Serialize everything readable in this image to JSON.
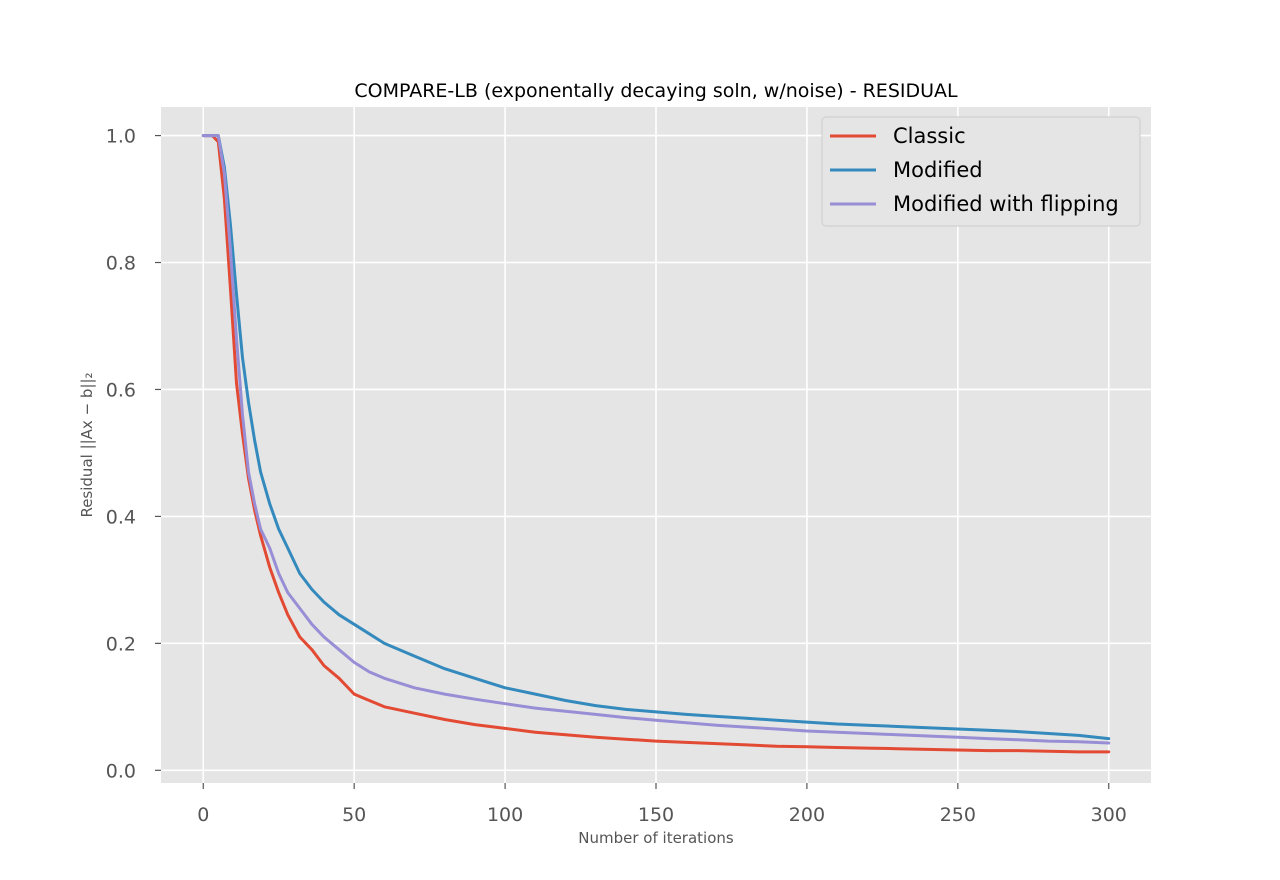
{
  "chart_data": {
    "type": "line",
    "title": "COMPARE-LB (exponentally decaying soln, w/noise) - RESIDUAL",
    "xlabel": "Number of iterations",
    "ylabel": "Residual ||Ax − b||₂",
    "xlim": [
      -14,
      314
    ],
    "ylim": [
      -0.02,
      1.045
    ],
    "xticks": [
      0,
      50,
      100,
      150,
      200,
      250,
      300
    ],
    "yticks": [
      0.0,
      0.2,
      0.4,
      0.6,
      0.8,
      1.0
    ],
    "xtick_labels": [
      "0",
      "50",
      "100",
      "150",
      "200",
      "250",
      "300"
    ],
    "ytick_labels": [
      "0.0",
      "0.2",
      "0.4",
      "0.6",
      "0.8",
      "1.0"
    ],
    "grid": true,
    "legend_position": "top-right",
    "series": [
      {
        "name": "Classic",
        "color": "#E24A33",
        "x": [
          0,
          3,
          5,
          7,
          9,
          11,
          13,
          15,
          17,
          19,
          22,
          25,
          28,
          32,
          36,
          40,
          45,
          50,
          55,
          60,
          70,
          80,
          90,
          100,
          110,
          120,
          130,
          140,
          150,
          160,
          170,
          180,
          190,
          200,
          210,
          220,
          230,
          240,
          250,
          260,
          270,
          280,
          290,
          300
        ],
        "values": [
          1.0,
          1.0,
          0.99,
          0.9,
          0.76,
          0.61,
          0.53,
          0.46,
          0.41,
          0.37,
          0.32,
          0.28,
          0.245,
          0.21,
          0.19,
          0.165,
          0.145,
          0.12,
          0.11,
          0.1,
          0.09,
          0.08,
          0.072,
          0.066,
          0.06,
          0.056,
          0.052,
          0.049,
          0.046,
          0.044,
          0.042,
          0.04,
          0.038,
          0.037,
          0.036,
          0.035,
          0.034,
          0.033,
          0.032,
          0.031,
          0.031,
          0.03,
          0.029,
          0.029
        ]
      },
      {
        "name": "Modified",
        "color": "#348ABD",
        "x": [
          0,
          3,
          5,
          7,
          9,
          11,
          13,
          15,
          17,
          19,
          22,
          25,
          28,
          32,
          36,
          40,
          45,
          50,
          55,
          60,
          70,
          80,
          90,
          100,
          110,
          120,
          130,
          140,
          150,
          160,
          170,
          180,
          190,
          200,
          210,
          220,
          230,
          240,
          250,
          260,
          270,
          280,
          290,
          300
        ],
        "values": [
          1.0,
          1.0,
          1.0,
          0.95,
          0.86,
          0.75,
          0.65,
          0.58,
          0.52,
          0.47,
          0.42,
          0.38,
          0.35,
          0.31,
          0.285,
          0.265,
          0.245,
          0.23,
          0.215,
          0.2,
          0.18,
          0.16,
          0.145,
          0.13,
          0.12,
          0.11,
          0.102,
          0.096,
          0.092,
          0.088,
          0.085,
          0.082,
          0.079,
          0.076,
          0.073,
          0.071,
          0.069,
          0.067,
          0.065,
          0.063,
          0.061,
          0.058,
          0.055,
          0.05
        ]
      },
      {
        "name": "Modified with flipping",
        "color": "#988ED5",
        "x": [
          0,
          3,
          5,
          7,
          9,
          11,
          13,
          15,
          17,
          19,
          22,
          25,
          28,
          32,
          36,
          40,
          45,
          50,
          55,
          60,
          70,
          80,
          90,
          100,
          110,
          120,
          130,
          140,
          150,
          160,
          170,
          180,
          190,
          200,
          210,
          220,
          230,
          240,
          250,
          260,
          270,
          280,
          290,
          300
        ],
        "values": [
          1.0,
          1.0,
          1.0,
          0.94,
          0.82,
          0.68,
          0.56,
          0.47,
          0.42,
          0.38,
          0.35,
          0.31,
          0.28,
          0.255,
          0.23,
          0.21,
          0.19,
          0.17,
          0.155,
          0.145,
          0.13,
          0.12,
          0.112,
          0.105,
          0.098,
          0.093,
          0.088,
          0.083,
          0.079,
          0.075,
          0.071,
          0.068,
          0.065,
          0.062,
          0.06,
          0.058,
          0.056,
          0.054,
          0.052,
          0.05,
          0.048,
          0.046,
          0.045,
          0.043
        ]
      }
    ]
  }
}
